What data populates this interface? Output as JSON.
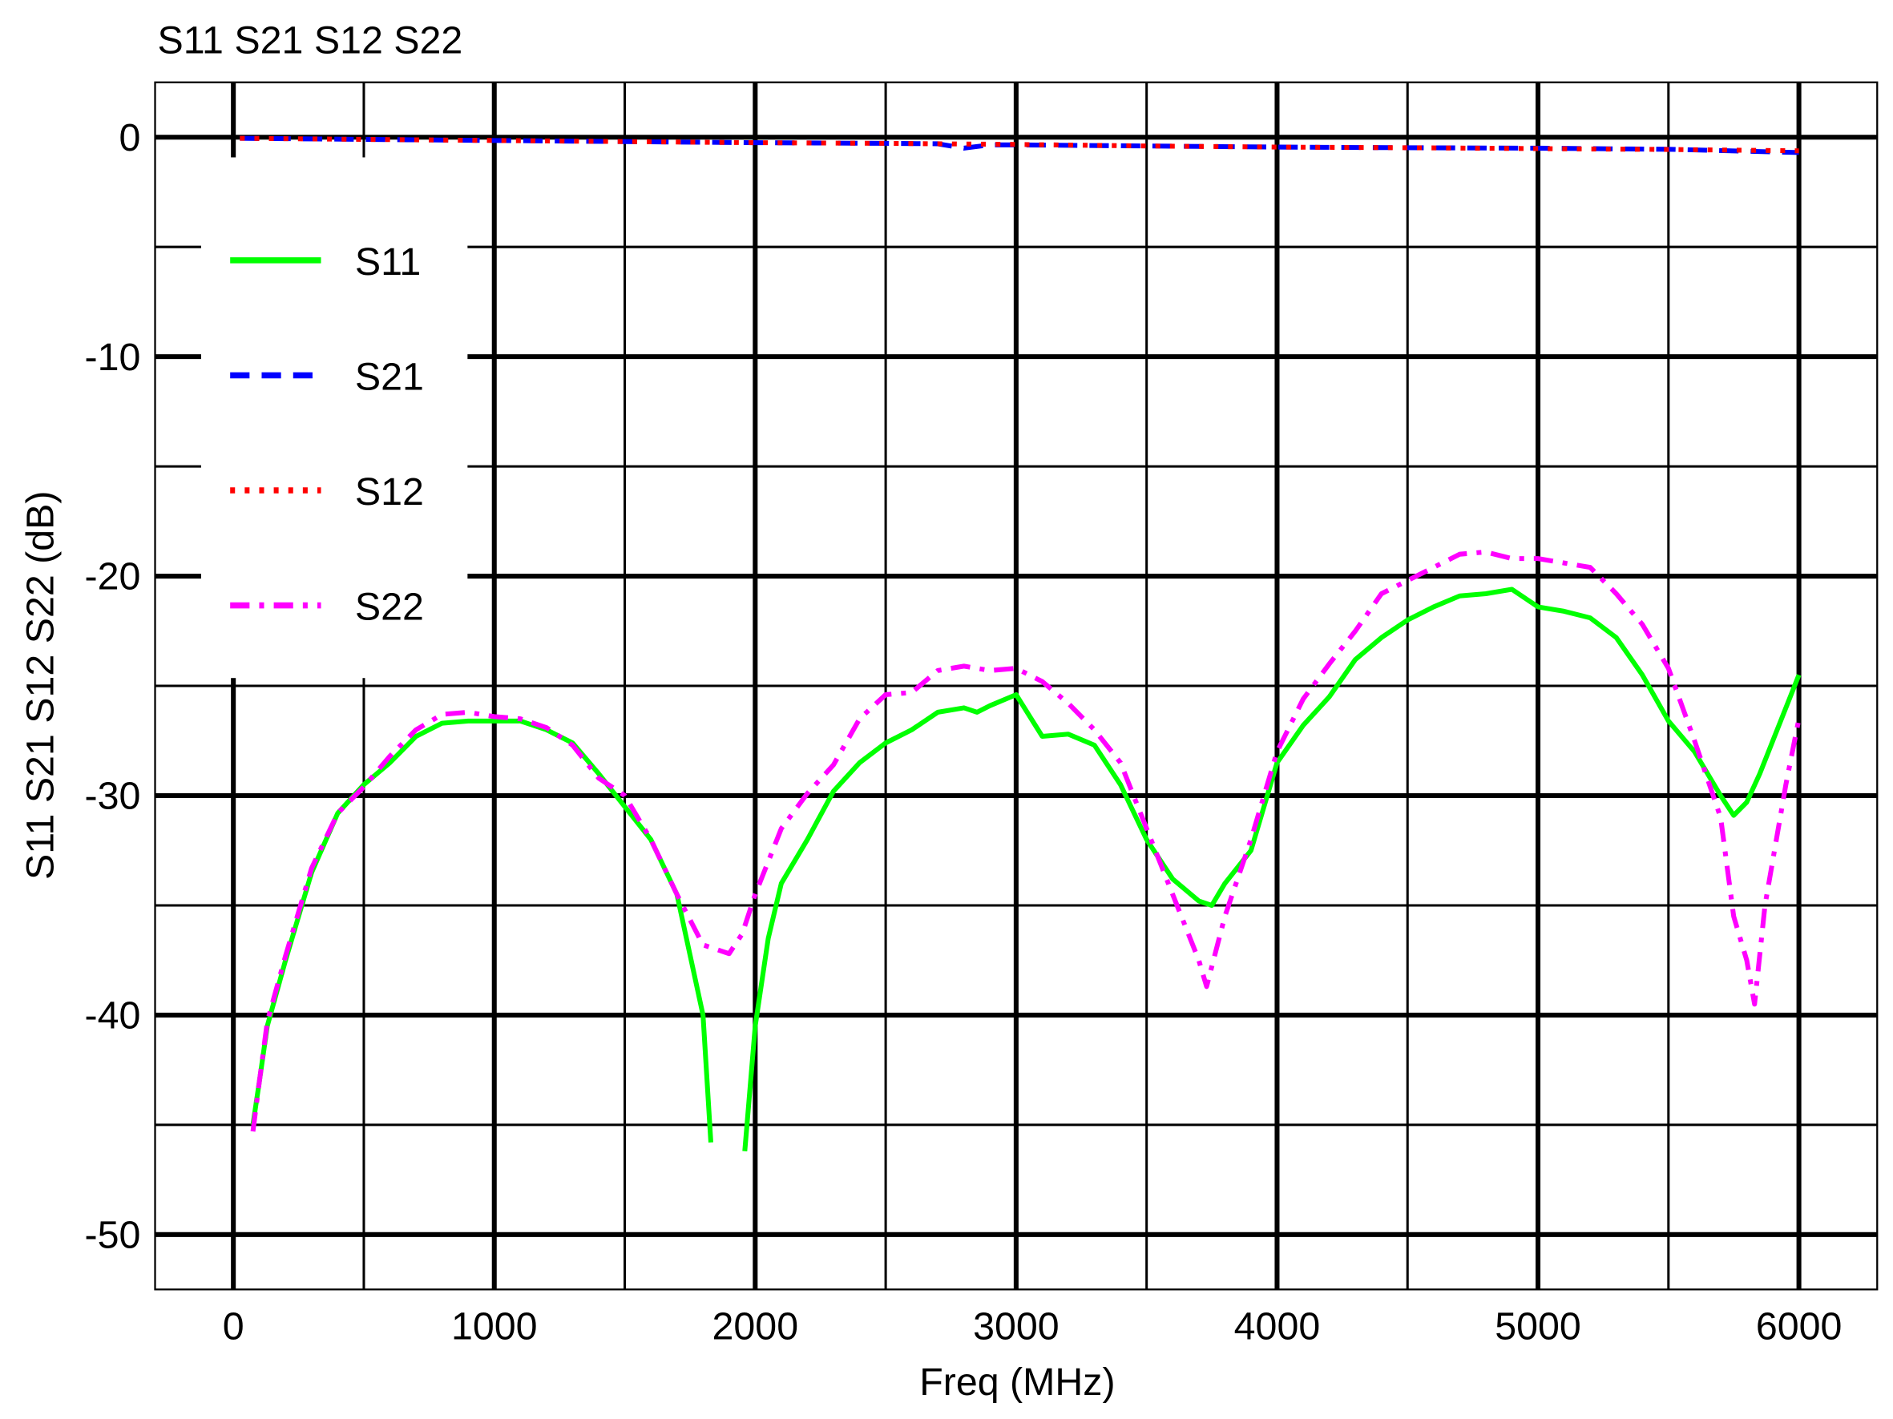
{
  "chart_data": {
    "type": "line",
    "title": "S11 S21 S12 S22",
    "xlabel": "Freq (MHz)",
    "ylabel": "S11 S21 S12 S22  (dB)",
    "xlim": [
      -300,
      6300
    ],
    "ylim": [
      -52.5,
      2.5
    ],
    "xticks": [
      0,
      1000,
      2000,
      3000,
      4000,
      5000,
      6000
    ],
    "yticks": [
      0,
      -10,
      -20,
      -30,
      -40,
      -50
    ],
    "xminorticks": [
      500,
      1500,
      2500,
      3500,
      4500,
      5500
    ],
    "yminorticks": [
      -5,
      -15,
      -25,
      -35,
      -45
    ],
    "grid": true,
    "legend": "upper left",
    "series": [
      {
        "name": "S11",
        "color": "#00ff00",
        "style": "solid",
        "x": [
          75,
          100,
          130,
          200,
          300,
          400,
          500,
          600,
          700,
          800,
          900,
          1000,
          1100,
          1200,
          1300,
          1400,
          1500,
          1600,
          1700,
          1800,
          1830,
          1900,
          1960,
          2000,
          2050,
          2100,
          2200,
          2300,
          2400,
          2500,
          2600,
          2700,
          2800,
          2850,
          2900,
          3000,
          3100,
          3200,
          3300,
          3400,
          3500,
          3600,
          3700,
          3750,
          3800,
          3900,
          4000,
          4100,
          4200,
          4300,
          4400,
          4500,
          4600,
          4700,
          4800,
          4900,
          5000,
          5100,
          5200,
          5300,
          5400,
          5500,
          5600,
          5700,
          5750,
          5800,
          5850,
          5900,
          6000
        ],
        "values": [
          -45,
          -43,
          -40.5,
          -37.5,
          -33.5,
          -30.8,
          -29.5,
          -28.5,
          -27.3,
          -26.7,
          -26.6,
          -26.6,
          -26.6,
          -27.0,
          -27.6,
          -29.0,
          -30.5,
          -32.0,
          -34.5,
          -40,
          -45.8,
          null,
          -46.2,
          -40.5,
          -36.5,
          -34,
          -32,
          -29.8,
          -28.5,
          -27.6,
          -27.0,
          -26.2,
          -26.0,
          -26.2,
          -25.9,
          -25.4,
          -27.3,
          -27.2,
          -27.7,
          -29.5,
          -32.0,
          -33.8,
          -34.8,
          -35.0,
          -34.0,
          -32.5,
          -28.5,
          -26.8,
          -25.5,
          -23.8,
          -22.8,
          -22.0,
          -21.4,
          -20.9,
          -20.8,
          -20.6,
          -21.4,
          -21.6,
          -21.9,
          -22.8,
          -24.5,
          -26.6,
          -28.0,
          -30.0,
          -30.9,
          -30.3,
          -29.0,
          -27.5,
          -24.5
        ]
      },
      {
        "name": "S21",
        "color": "#0000ff",
        "style": "dashed",
        "x": [
          25,
          500,
          1000,
          1500,
          2000,
          2500,
          2700,
          2800,
          2900,
          3000,
          3500,
          4000,
          4500,
          5000,
          5500,
          6000
        ],
        "values": [
          -0.05,
          -0.1,
          -0.15,
          -0.2,
          -0.25,
          -0.28,
          -0.3,
          -0.5,
          -0.35,
          -0.35,
          -0.4,
          -0.45,
          -0.48,
          -0.5,
          -0.55,
          -0.7
        ]
      },
      {
        "name": "S12",
        "color": "#ff0000",
        "style": "dotted",
        "x": [
          25,
          500,
          1000,
          1500,
          2000,
          2500,
          3000,
          3500,
          4000,
          4500,
          5000,
          5500,
          6000
        ],
        "values": [
          -0.05,
          -0.1,
          -0.15,
          -0.2,
          -0.25,
          -0.28,
          -0.33,
          -0.4,
          -0.45,
          -0.48,
          -0.52,
          -0.56,
          -0.62
        ]
      },
      {
        "name": "S22",
        "color": "#ff00ff",
        "style": "dashdot",
        "x": [
          75,
          100,
          130,
          200,
          300,
          400,
          500,
          600,
          700,
          800,
          900,
          1000,
          1100,
          1200,
          1300,
          1400,
          1500,
          1600,
          1700,
          1800,
          1900,
          1950,
          2000,
          2100,
          2200,
          2300,
          2400,
          2500,
          2600,
          2700,
          2800,
          2900,
          3000,
          3100,
          3200,
          3300,
          3400,
          3500,
          3600,
          3700,
          3730,
          3800,
          3900,
          4000,
          4100,
          4200,
          4300,
          4400,
          4500,
          4600,
          4700,
          4800,
          4900,
          5000,
          5100,
          5200,
          5300,
          5400,
          5500,
          5600,
          5700,
          5750,
          5800,
          5830,
          5870,
          5950,
          6000
        ],
        "values": [
          -45.3,
          -43,
          -40.3,
          -37.3,
          -33.3,
          -30.8,
          -29.6,
          -28.2,
          -27.0,
          -26.3,
          -26.2,
          -26.4,
          -26.5,
          -26.9,
          -27.7,
          -29.2,
          -30.0,
          -32.0,
          -34.5,
          -36.8,
          -37.2,
          -36.3,
          -34.5,
          -31.5,
          -29.9,
          -28.6,
          -26.5,
          -25.4,
          -25.3,
          -24.3,
          -24.1,
          -24.3,
          -24.2,
          -24.8,
          -25.8,
          -27.0,
          -28.5,
          -31.5,
          -34.5,
          -37.5,
          -38.7,
          -35.5,
          -32.0,
          -28.0,
          -25.6,
          -24.0,
          -22.5,
          -20.8,
          -20.2,
          -19.6,
          -19.0,
          -18.9,
          -19.2,
          -19.2,
          -19.4,
          -19.6,
          -20.8,
          -22.2,
          -24.2,
          -27.5,
          -31.0,
          -35.5,
          -37.5,
          -39.5,
          -35,
          -29.5,
          -26.5
        ]
      }
    ]
  }
}
